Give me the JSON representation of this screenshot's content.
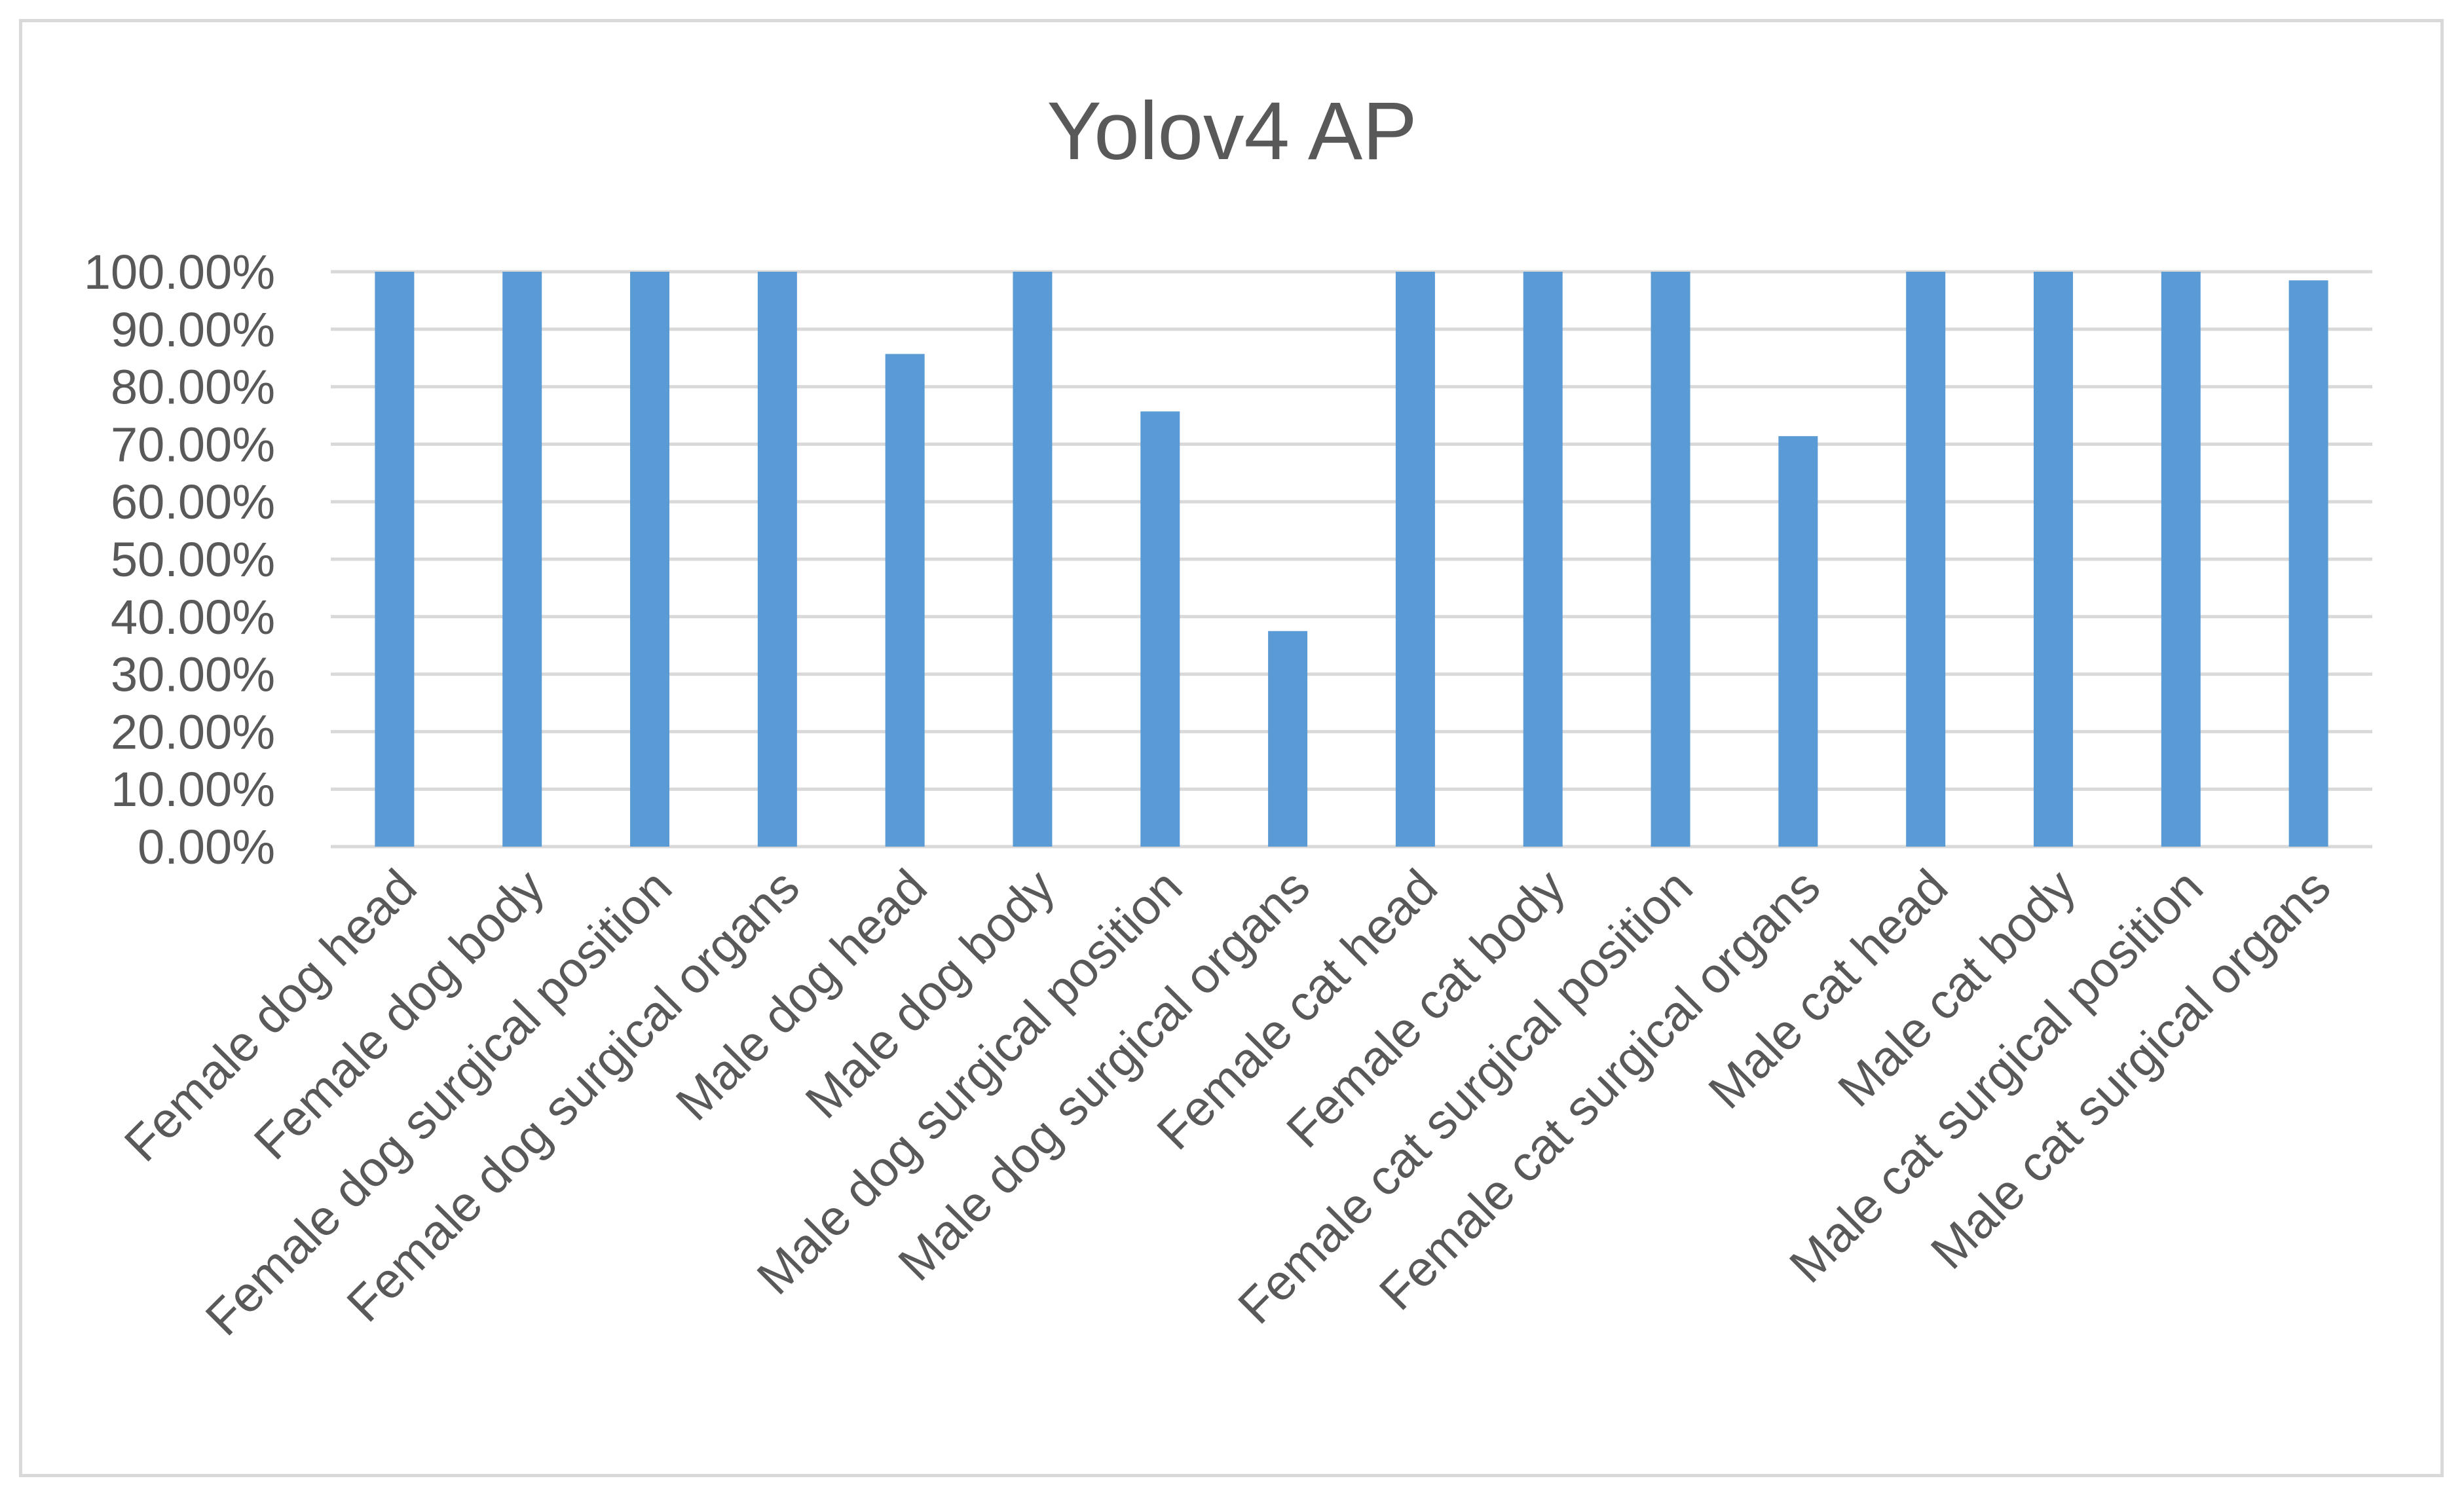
{
  "chart_data": {
    "type": "bar",
    "title": "Yolov4  AP",
    "xlabel": "",
    "ylabel": "",
    "ylim": [
      0,
      100
    ],
    "y_ticks": [
      0,
      10,
      20,
      30,
      40,
      50,
      60,
      70,
      80,
      90,
      100
    ],
    "y_tick_labels": [
      "0.00%",
      "10.00%",
      "20.00%",
      "30.00%",
      "40.00%",
      "50.00%",
      "60.00%",
      "70.00%",
      "80.00%",
      "90.00%",
      "100.00%"
    ],
    "grid": true,
    "legend": "none",
    "bar_color": "#5b9bd5",
    "categories": [
      "Female dog head",
      "Female dog body",
      "Female dog surgical position",
      "Female dog surgical organs",
      "Male dog head",
      "Male dog body",
      "Male dog surgical position",
      "Male dog surgical organs",
      "Female cat head",
      "Female cat body",
      "Female cat surgical position",
      "Female cat surgical organs",
      "Male cat head",
      "Male cat body",
      "Male cat surgical position",
      "Male cat surgical organs"
    ],
    "values": [
      100,
      100,
      100,
      100,
      85.7,
      100,
      75.7,
      37.5,
      100,
      100,
      100,
      71.4,
      100,
      100,
      100,
      98.5
    ]
  }
}
